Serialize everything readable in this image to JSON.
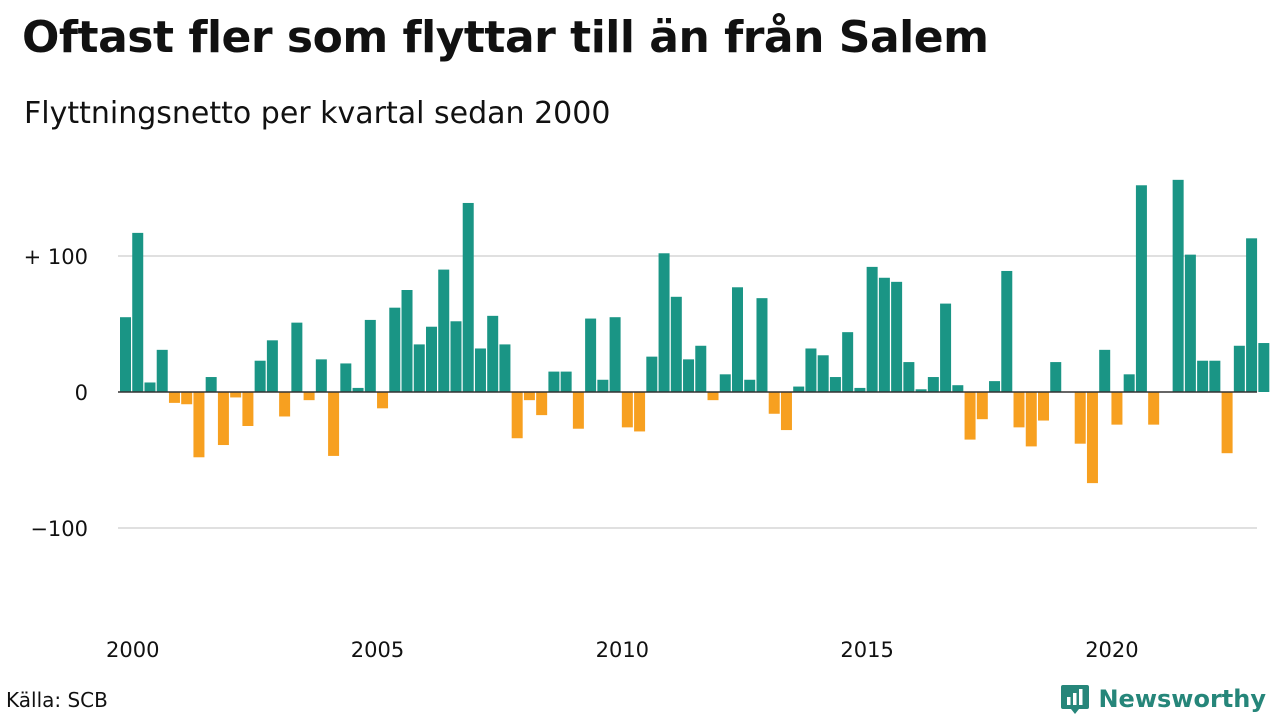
{
  "title": "Oftast fler som flyttar till än från Salem",
  "subtitle": "Flyttningsnetto per kvartal sedan 2000",
  "source": "Källa: SCB",
  "brand": {
    "name": "Newsworthy",
    "icon": "newsworthy-logo-icon"
  },
  "colors": {
    "positive": "#1a9585",
    "negative": "#f7a020",
    "grid": "#e0e0e0",
    "axis": "#333333"
  },
  "chart_data": {
    "type": "bar",
    "x_start": "2000 Q1",
    "frequency": "quarterly",
    "y_tick_labels": [
      "+ 100",
      "0",
      "−100"
    ],
    "y_ticks": [
      100,
      0,
      -100
    ],
    "x_tick_labels": [
      "2000",
      "2005",
      "2010",
      "2015",
      "2020"
    ],
    "ylim": [
      -160,
      160
    ],
    "grid": true,
    "values": [
      55,
      117,
      7,
      31,
      -8,
      -9,
      -48,
      11,
      -39,
      -4,
      -25,
      23,
      38,
      -18,
      51,
      -6,
      24,
      -47,
      21,
      3,
      53,
      -12,
      62,
      75,
      35,
      48,
      90,
      52,
      139,
      32,
      56,
      35,
      -34,
      -6,
      -17,
      15,
      15,
      -27,
      54,
      9,
      55,
      -26,
      -29,
      26,
      102,
      70,
      24,
      34,
      -6,
      13,
      77,
      9,
      69,
      -16,
      -28,
      4,
      32,
      27,
      11,
      44,
      3,
      92,
      84,
      81,
      22,
      2,
      11,
      65,
      5,
      -35,
      -20,
      8,
      89,
      -26,
      -40,
      -21,
      22,
      0,
      -38,
      -67,
      31,
      -24,
      13,
      152,
      -24,
      0,
      156,
      101,
      23,
      23,
      -45,
      34,
      113,
      36
    ]
  }
}
